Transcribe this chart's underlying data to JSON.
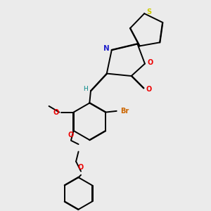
{
  "background_color": "#ebebeb",
  "bond_color": "#000000",
  "atom_colors": {
    "S": "#cccc00",
    "N": "#2222cc",
    "O": "#ee0000",
    "Br": "#cc6600",
    "H": "#008888",
    "C": "#000000"
  },
  "figsize": [
    3.0,
    3.0
  ],
  "dpi": 100
}
